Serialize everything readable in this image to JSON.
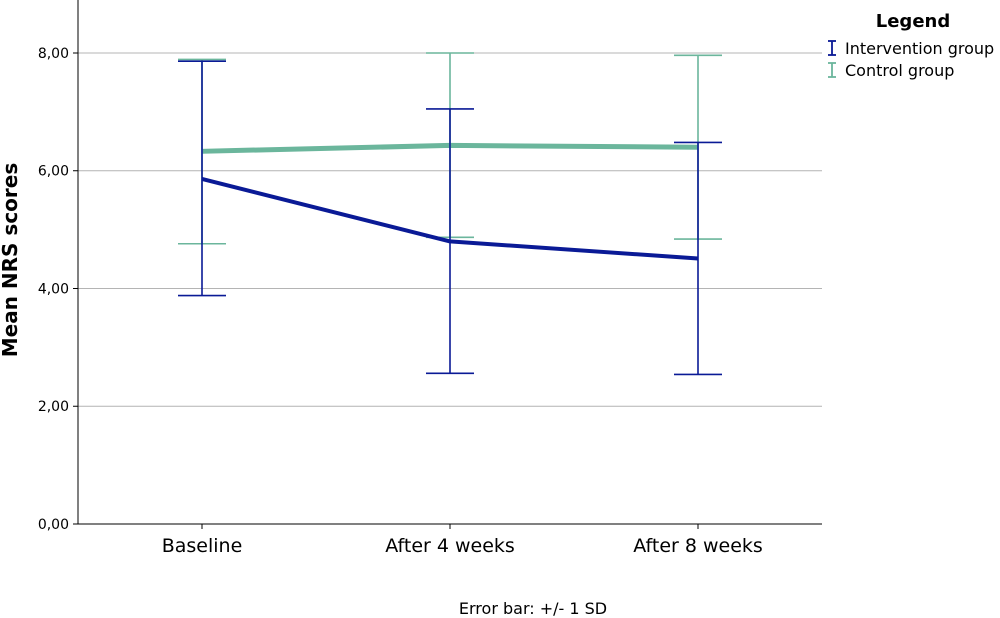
{
  "chart_data": {
    "type": "line",
    "xlabel": "",
    "ylabel": "Mean NRS scores",
    "ylim": [
      0,
      8.9
    ],
    "yticks": [
      "0,00",
      "2,00",
      "4,00",
      "6,00",
      "8,00"
    ],
    "categories": [
      "Baseline",
      "After 4 weeks",
      "After 8 weeks"
    ],
    "grid": true,
    "legend": {
      "title": "Legend",
      "position": "top-right"
    },
    "footnote": "Error bar: +/- 1 SD",
    "series": [
      {
        "name": "Intervention group",
        "color": "#0a1a96",
        "values": [
          5.86,
          4.8,
          4.51
        ],
        "error_low": [
          3.88,
          2.56,
          2.54
        ],
        "error_high": [
          7.86,
          7.05,
          6.48
        ]
      },
      {
        "name": "Control group",
        "color": "#6bb69c",
        "values": [
          6.33,
          6.43,
          6.4
        ],
        "error_low": [
          4.76,
          4.87,
          4.84
        ],
        "error_high": [
          7.89,
          8.0,
          7.96
        ]
      }
    ]
  }
}
